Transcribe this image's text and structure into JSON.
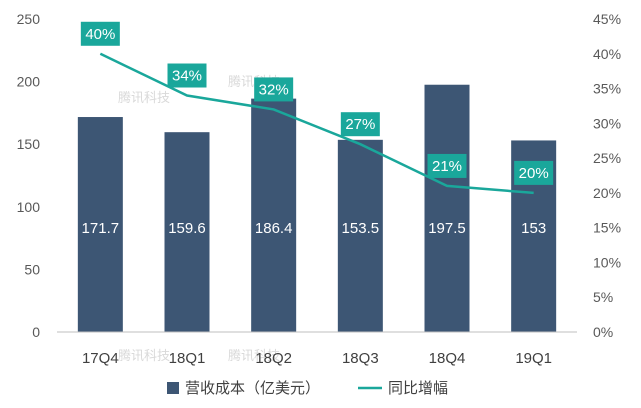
{
  "chart_data": {
    "type": "bar",
    "categories": [
      "17Q4",
      "18Q1",
      "18Q2",
      "18Q3",
      "18Q4",
      "19Q1"
    ],
    "series": [
      {
        "name": "营收成本（亿美元）",
        "type": "bar",
        "axis": "left",
        "values": [
          171.7,
          159.6,
          186.4,
          153.5,
          197.5,
          153
        ],
        "labels": [
          "171.7",
          "159.6",
          "186.4",
          "153.5",
          "197.5",
          "153"
        ],
        "color": "#3d5674"
      },
      {
        "name": "同比增幅",
        "type": "line",
        "axis": "right",
        "values": [
          40,
          34,
          32,
          27,
          21,
          20
        ],
        "labels": [
          "40%",
          "34%",
          "32%",
          "27%",
          "21%",
          "20%"
        ],
        "color": "#1aa79b"
      }
    ],
    "y_left": {
      "min": 0,
      "max": 250,
      "ticks": [
        "0",
        "50",
        "100",
        "150",
        "200",
        "250"
      ]
    },
    "y_right": {
      "min": 0,
      "max": 45,
      "ticks": [
        "0%",
        "5%",
        "10%",
        "15%",
        "20%",
        "25%",
        "30%",
        "35%",
        "40%",
        "45%"
      ]
    },
    "grid": false,
    "legend": "bottom"
  },
  "watermarks": [
    "腾讯科技",
    "腾讯科技",
    "腾讯科技",
    "腾讯科技"
  ],
  "colors": {
    "axis": "#bfbfbf",
    "tick_text": "#595959"
  }
}
